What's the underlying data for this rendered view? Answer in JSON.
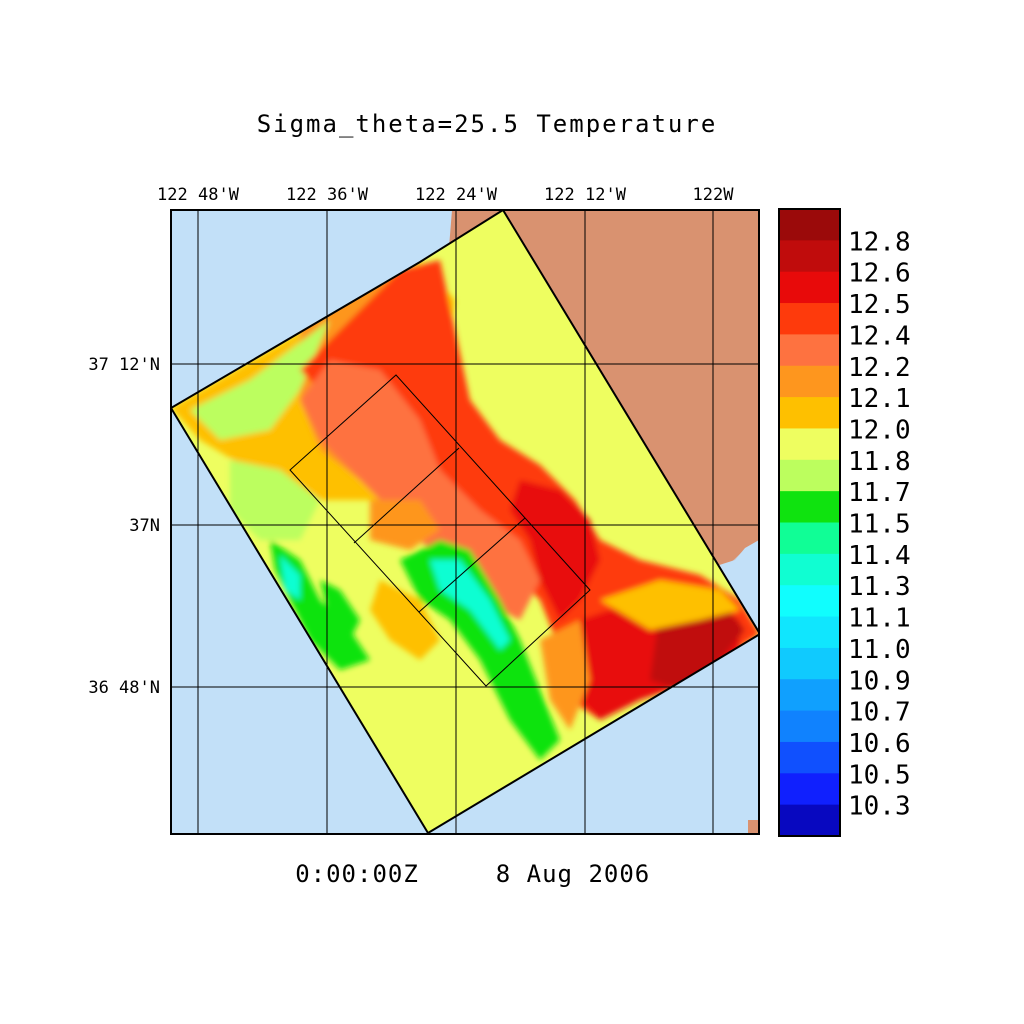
{
  "title": "Sigma_theta=25.5 Temperature",
  "timestamp": "0:00:00Z",
  "date": "8 Aug 2006",
  "lon_labels": [
    "122 48'W",
    "122 36'W",
    "122 24'W",
    "122 12'W",
    "122W"
  ],
  "lat_labels": [
    "37 12'N",
    "37N",
    "36 48'N"
  ],
  "colorbar": {
    "labels": [
      "12.8",
      "12.6",
      "12.5",
      "12.4",
      "12.2",
      "12.1",
      "12.0",
      "11.8",
      "11.7",
      "11.5",
      "11.4",
      "11.3",
      "11.1",
      "11.0",
      "10.9",
      "10.7",
      "10.6",
      "10.5",
      "10.3"
    ],
    "colors": [
      "#9b0a0a",
      "#c00c0c",
      "#e80a0a",
      "#fe3a0c",
      "#fe7240",
      "#fe961e",
      "#fec000",
      "#eefe60",
      "#bcfe5e",
      "#0fe30f",
      "#10fe96",
      "#10fed2",
      "#10fefe",
      "#10e6fe",
      "#10cafe",
      "#10a0fe",
      "#1082fe",
      "#1050fe",
      "#1020fe",
      "#0808c0"
    ]
  },
  "colors": {
    "ocean": "#c2e0f8",
    "land": "#d99270",
    "grid": "#000000"
  }
}
